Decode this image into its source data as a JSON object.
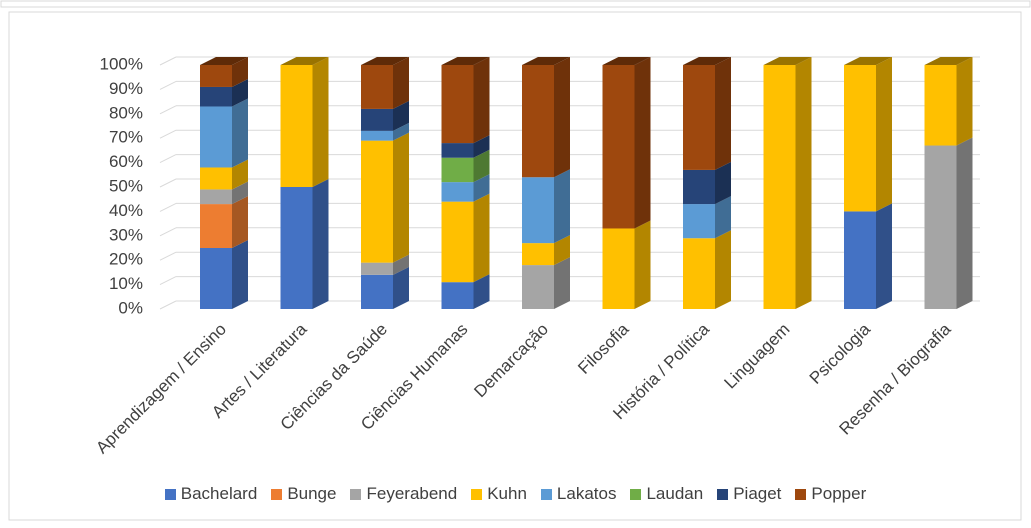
{
  "chart_data": {
    "type": "bar3d_stacked",
    "categories": [
      "Aprendizagem / Ensino",
      "Artes / Literatura",
      "Ciências da Saúde",
      "Ciências Humanas",
      "Demarcação",
      "Filosofia",
      "História / Política",
      "Linguagem",
      "Psicologia",
      "Resenha / Biografia"
    ],
    "series": [
      {
        "name": "Bachelard",
        "color": "#4472c4",
        "values": [
          25,
          50,
          14,
          11,
          0,
          0,
          0,
          0,
          40,
          0
        ]
      },
      {
        "name": "Bunge",
        "color": "#ed7d31",
        "values": [
          18,
          0,
          0,
          0,
          0,
          0,
          0,
          0,
          0,
          0
        ]
      },
      {
        "name": "Feyerabend",
        "color": "#a5a5a5",
        "values": [
          6,
          0,
          5,
          0,
          18,
          0,
          0,
          0,
          0,
          67
        ]
      },
      {
        "name": "Kuhn",
        "color": "#ffc000",
        "values": [
          9,
          50,
          50,
          33,
          9,
          33,
          29,
          100,
          60,
          33
        ]
      },
      {
        "name": "Lakatos",
        "color": "#5b9bd5",
        "values": [
          25,
          0,
          4,
          8,
          27,
          0,
          14,
          0,
          0,
          0
        ]
      },
      {
        "name": "Laudan",
        "color": "#70ad47",
        "values": [
          0,
          0,
          0,
          10,
          0,
          0,
          0,
          0,
          0,
          0
        ]
      },
      {
        "name": "Piaget",
        "color": "#264478",
        "values": [
          8,
          0,
          9,
          6,
          0,
          0,
          14,
          0,
          0,
          0
        ]
      },
      {
        "name": "Popper",
        "color": "#9e480e",
        "values": [
          9,
          0,
          18,
          32,
          46,
          67,
          43,
          0,
          0,
          0
        ]
      }
    ],
    "ylim": [
      0,
      100
    ],
    "yticks": [
      {
        "value": 0,
        "label": "0%"
      },
      {
        "value": 10,
        "label": "10%"
      },
      {
        "value": 20,
        "label": "20%"
      },
      {
        "value": 30,
        "label": "30%"
      },
      {
        "value": 40,
        "label": "40%"
      },
      {
        "value": 50,
        "label": "50%"
      },
      {
        "value": 60,
        "label": "60%"
      },
      {
        "value": 70,
        "label": "70%"
      },
      {
        "value": 80,
        "label": "80%"
      },
      {
        "value": 90,
        "label": "90%"
      },
      {
        "value": 100,
        "label": "100%"
      }
    ],
    "grid": true,
    "legend": "bottom"
  }
}
